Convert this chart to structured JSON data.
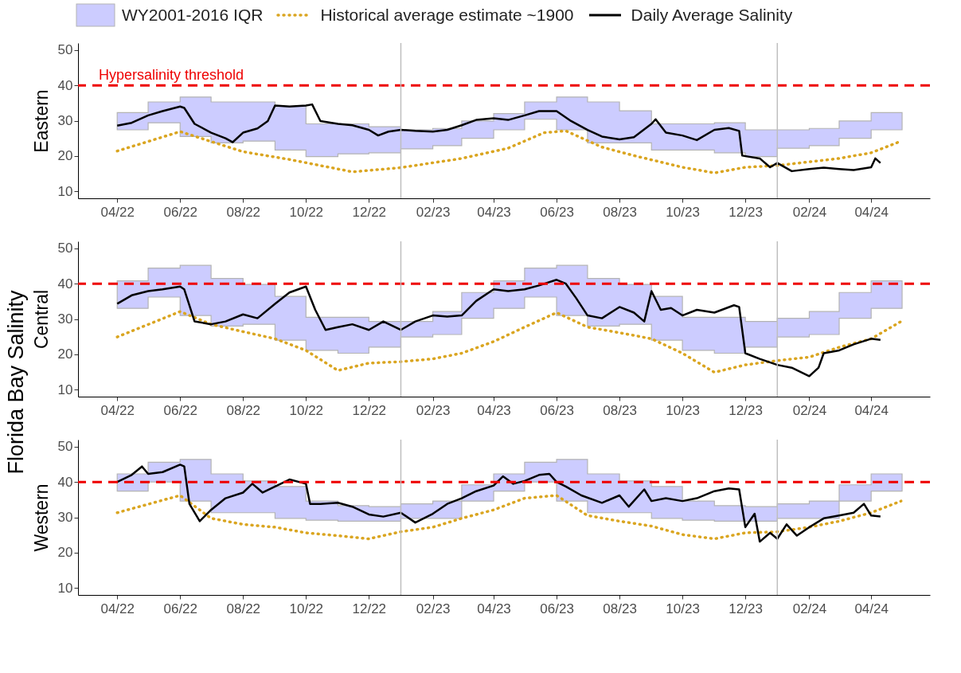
{
  "chart_data": [
    {
      "type": "line",
      "ylabel": "Eastern",
      "annotations": [
        "Florida Bay Salinity"
      ],
      "legend": "top",
      "grid": false,
      "xlim": [
        "2022-02-22",
        "2024-05-28"
      ],
      "ylim": [
        8,
        52
      ],
      "yticks": [
        10,
        20,
        30,
        40,
        50
      ],
      "xticks": [
        {
          "value": "2022-04-01",
          "label": "04/22"
        },
        {
          "value": "2022-06-01",
          "label": "06/22"
        },
        {
          "value": "2022-08-01",
          "label": "08/22"
        },
        {
          "value": "2022-10-01",
          "label": "10/22"
        },
        {
          "value": "2022-12-01",
          "label": "12/22"
        },
        {
          "value": "2023-02-01",
          "label": "02/23"
        },
        {
          "value": "2023-04-01",
          "label": "04/23"
        },
        {
          "value": "2023-06-01",
          "label": "06/23"
        },
        {
          "value": "2023-08-01",
          "label": "08/23"
        },
        {
          "value": "2023-10-01",
          "label": "10/23"
        },
        {
          "value": "2023-12-01",
          "label": "12/23"
        },
        {
          "value": "2024-02-01",
          "label": "02/24"
        },
        {
          "value": "2024-04-01",
          "label": "04/24"
        }
      ],
      "ref_lines": [
        {
          "axis": "y",
          "value": 40,
          "label": "Hypersalinity threshold",
          "color": "#ee0000",
          "line_style": "dashed"
        },
        {
          "axis": "x",
          "value": "2023-01-01",
          "color": "#bebebe"
        },
        {
          "axis": "x",
          "value": "2024-01-01",
          "color": "#bebebe"
        }
      ],
      "series": [
        {
          "name": "WY2001-2016 IQR",
          "type": "area",
          "color": "#ccccff",
          "values": [
            null,
            null,
            null,
            null,
            null,
            null,
            null,
            null,
            null,
            null,
            null,
            null,
            null,
            null,
            null,
            null,
            null,
            null,
            null,
            null,
            null,
            null,
            null,
            null,
            null,
            null
          ],
          "x": [
            "2022-04",
            "2022-05",
            "2022-06",
            "2022-07",
            "2022-08",
            "2022-09",
            "2022-10",
            "2022-11",
            "2022-12",
            "2023-01",
            "2023-02",
            "2023-03",
            "2023-04",
            "2023-05",
            "2023-06",
            "2023-07",
            "2023-08",
            "2023-09",
            "2023-10",
            "2023-11",
            "2023-12",
            "2024-01",
            "2024-02",
            "2024-03",
            "2024-04",
            "2024-05"
          ],
          "upper": [
            32.3,
            35.3,
            36.7,
            35.3,
            35.3,
            34.1,
            29.1,
            29.1,
            28.3,
            27.4,
            27.8,
            29.9,
            32.0,
            35.3,
            36.7,
            35.3,
            32.8,
            29.1,
            29.1,
            29.4,
            27.4,
            27.4,
            27.8,
            29.9,
            32.3,
            32.3
          ],
          "lower": [
            27.4,
            29.4,
            25.5,
            23.7,
            24.2,
            21.7,
            19.8,
            20.6,
            20.9,
            22.0,
            22.9,
            25.0,
            27.4,
            30.4,
            27.4,
            23.7,
            23.7,
            21.7,
            21.7,
            20.9,
            19.8,
            22.2,
            22.9,
            25.0,
            27.4,
            27.4
          ]
        },
        {
          "name": "Historical average estimate ~1900",
          "type": "line",
          "line_style": "dotted",
          "color": "#daa520",
          "x": [
            "2022-04-01",
            "2022-06-01",
            "2022-08-01",
            "2022-09-15",
            "2022-11-15",
            "2023-01-01",
            "2023-03-01",
            "2023-04-15",
            "2023-05-20",
            "2023-06-10",
            "2023-07-15",
            "2023-08-15",
            "2023-10-01",
            "2023-11-01",
            "2023-12-01",
            "2024-01-01",
            "2024-03-01",
            "2024-04-01",
            "2024-04-30"
          ],
          "values": [
            21.4,
            26.9,
            21.2,
            19.0,
            15.5,
            16.7,
            19.3,
            22.2,
            26.6,
            27.1,
            22.5,
            20.1,
            16.8,
            15.2,
            16.8,
            17.3,
            19.3,
            20.9,
            24.2
          ]
        },
        {
          "name": "Daily Average Salinity",
          "type": "line",
          "line_style": "solid",
          "color": "#000000",
          "x": [
            "2022-04-01",
            "2022-04-15",
            "2022-05-01",
            "2022-05-15",
            "2022-06-01",
            "2022-06-05",
            "2022-06-15",
            "2022-07-01",
            "2022-07-15",
            "2022-07-22",
            "2022-08-01",
            "2022-08-15",
            "2022-08-25",
            "2022-09-01",
            "2022-09-15",
            "2022-10-01",
            "2022-10-07",
            "2022-10-15",
            "2022-11-01",
            "2022-11-15",
            "2022-12-01",
            "2022-12-10",
            "2022-12-20",
            "2023-01-01",
            "2023-01-15",
            "2023-02-01",
            "2023-02-15",
            "2023-03-01",
            "2023-03-15",
            "2023-04-01",
            "2023-04-15",
            "2023-05-01",
            "2023-05-15",
            "2023-06-01",
            "2023-06-15",
            "2023-07-01",
            "2023-07-15",
            "2023-08-01",
            "2023-08-15",
            "2023-09-01",
            "2023-09-05",
            "2023-09-15",
            "2023-10-01",
            "2023-10-15",
            "2023-11-01",
            "2023-11-15",
            "2023-11-25",
            "2023-11-28",
            "2023-12-15",
            "2023-12-25",
            "2024-01-01",
            "2024-01-15",
            "2024-02-01",
            "2024-02-15",
            "2024-03-01",
            "2024-03-15",
            "2024-04-01",
            "2024-04-05",
            "2024-04-10"
          ],
          "values": [
            28.6,
            29.4,
            31.5,
            32.7,
            34.0,
            33.6,
            29.1,
            26.6,
            25.0,
            23.9,
            26.6,
            27.8,
            29.9,
            34.3,
            34.0,
            34.3,
            34.6,
            29.9,
            29.1,
            28.7,
            27.4,
            25.8,
            26.9,
            27.4,
            27.1,
            26.9,
            27.4,
            28.7,
            30.2,
            30.7,
            30.2,
            31.5,
            32.7,
            32.7,
            29.9,
            27.4,
            25.5,
            24.7,
            25.3,
            29.1,
            30.4,
            26.6,
            25.8,
            24.5,
            27.4,
            27.9,
            27.1,
            20.1,
            19.3,
            16.8,
            18.0,
            15.7,
            16.3,
            16.7,
            16.3,
            16.0,
            16.8,
            19.3,
            18.0
          ]
        }
      ]
    },
    {
      "type": "line",
      "ylabel": "Central",
      "grid": false,
      "xlim": [
        "2022-02-22",
        "2024-05-28"
      ],
      "ylim": [
        8,
        52
      ],
      "yticks": [
        10,
        20,
        30,
        40,
        50
      ],
      "xticks": [
        {
          "value": "2022-04-01",
          "label": "04/22"
        },
        {
          "value": "2022-06-01",
          "label": "06/22"
        },
        {
          "value": "2022-08-01",
          "label": "08/22"
        },
        {
          "value": "2022-10-01",
          "label": "10/22"
        },
        {
          "value": "2022-12-01",
          "label": "12/22"
        },
        {
          "value": "2023-02-01",
          "label": "02/23"
        },
        {
          "value": "2023-04-01",
          "label": "04/23"
        },
        {
          "value": "2023-06-01",
          "label": "06/23"
        },
        {
          "value": "2023-08-01",
          "label": "08/23"
        },
        {
          "value": "2023-10-01",
          "label": "10/23"
        },
        {
          "value": "2023-12-01",
          "label": "12/23"
        },
        {
          "value": "2024-02-01",
          "label": "02/24"
        },
        {
          "value": "2024-04-01",
          "label": "04/24"
        }
      ],
      "ref_lines": [
        {
          "axis": "y",
          "value": 40,
          "color": "#ee0000",
          "line_style": "dashed"
        },
        {
          "axis": "x",
          "value": "2023-01-01",
          "color": "#bebebe"
        },
        {
          "axis": "x",
          "value": "2024-01-01",
          "color": "#bebebe"
        }
      ],
      "series": [
        {
          "type": "area",
          "color": "#ccccff",
          "values": [
            null,
            null,
            null,
            null,
            null,
            null,
            null,
            null,
            null,
            null,
            null,
            null,
            null,
            null,
            null,
            null,
            null,
            null,
            null,
            null,
            null,
            null,
            null,
            null,
            null,
            null
          ],
          "x": [
            "2022-04",
            "2022-05",
            "2022-06",
            "2022-07",
            "2022-08",
            "2022-09",
            "2022-10",
            "2022-11",
            "2022-12",
            "2023-01",
            "2023-02",
            "2023-03",
            "2023-04",
            "2023-05",
            "2023-06",
            "2023-07",
            "2023-08",
            "2023-09",
            "2023-10",
            "2023-11",
            "2023-12",
            "2024-01",
            "2024-02",
            "2024-03",
            "2024-04",
            "2024-05"
          ],
          "upper": [
            40.8,
            44.4,
            45.2,
            41.5,
            39.8,
            36.4,
            30.5,
            30.5,
            29.3,
            29.3,
            32.1,
            37.5,
            40.8,
            44.4,
            45.2,
            41.5,
            39.8,
            36.4,
            30.5,
            30.5,
            29.3,
            30.2,
            32.1,
            37.5,
            40.8,
            40.8
          ],
          "lower": [
            33.0,
            36.2,
            31.0,
            28.0,
            28.5,
            24.0,
            21.1,
            20.3,
            22.0,
            24.9,
            25.6,
            30.2,
            33.0,
            36.2,
            31.0,
            28.0,
            28.5,
            24.0,
            21.1,
            20.3,
            22.0,
            24.9,
            25.6,
            30.2,
            33.0,
            33.0
          ]
        },
        {
          "type": "line",
          "line_style": "dotted",
          "color": "#daa520",
          "x": [
            "2022-04-01",
            "2022-06-01",
            "2022-07-01",
            "2022-08-01",
            "2022-09-01",
            "2022-10-01",
            "2022-11-01",
            "2022-12-01",
            "2023-01-01",
            "2023-02-01",
            "2023-03-01",
            "2023-04-01",
            "2023-05-01",
            "2023-06-01",
            "2023-07-01",
            "2023-08-01",
            "2023-09-01",
            "2023-10-01",
            "2023-11-01",
            "2023-12-01",
            "2024-01-01",
            "2024-02-01",
            "2024-03-01",
            "2024-04-01",
            "2024-04-30"
          ],
          "values": [
            24.9,
            32.1,
            28.5,
            26.4,
            24.4,
            21.1,
            15.4,
            17.5,
            17.9,
            18.7,
            20.3,
            23.6,
            27.7,
            31.8,
            27.7,
            26.1,
            24.4,
            20.3,
            14.9,
            17.0,
            18.2,
            19.2,
            22.0,
            24.4,
            29.3
          ]
        },
        {
          "type": "line",
          "line_style": "solid",
          "color": "#000000",
          "x": [
            "2022-04-01",
            "2022-04-15",
            "2022-05-01",
            "2022-05-15",
            "2022-06-01",
            "2022-06-05",
            "2022-06-15",
            "2022-07-01",
            "2022-07-15",
            "2022-08-01",
            "2022-08-15",
            "2022-09-01",
            "2022-09-15",
            "2022-10-01",
            "2022-10-10",
            "2022-10-20",
            "2022-11-01",
            "2022-11-15",
            "2022-12-01",
            "2022-12-15",
            "2023-01-01",
            "2023-01-15",
            "2023-02-01",
            "2023-02-15",
            "2023-03-01",
            "2023-03-15",
            "2023-04-01",
            "2023-04-15",
            "2023-05-01",
            "2023-05-15",
            "2023-06-01",
            "2023-06-10",
            "2023-06-20",
            "2023-07-01",
            "2023-07-15",
            "2023-08-01",
            "2023-08-15",
            "2023-08-25",
            "2023-09-01",
            "2023-09-10",
            "2023-09-20",
            "2023-10-01",
            "2023-10-15",
            "2023-11-01",
            "2023-11-20",
            "2023-11-25",
            "2023-12-01",
            "2023-12-15",
            "2024-01-01",
            "2024-01-15",
            "2024-02-01",
            "2024-02-10",
            "2024-02-15",
            "2024-03-01",
            "2024-03-15",
            "2024-04-01",
            "2024-04-10"
          ],
          "values": [
            34.3,
            36.7,
            37.9,
            38.4,
            39.2,
            38.4,
            29.3,
            28.5,
            29.3,
            31.3,
            30.2,
            34.3,
            37.5,
            39.2,
            32.6,
            26.9,
            27.7,
            28.5,
            26.9,
            29.3,
            26.9,
            29.3,
            31.0,
            30.7,
            31.0,
            35.1,
            38.4,
            37.9,
            38.4,
            39.5,
            41.1,
            40.0,
            35.9,
            31.0,
            30.2,
            33.4,
            31.8,
            29.3,
            37.9,
            32.6,
            33.1,
            31.0,
            32.6,
            31.8,
            33.9,
            33.4,
            20.3,
            18.7,
            17.0,
            16.2,
            13.8,
            16.2,
            20.3,
            21.1,
            22.8,
            24.4,
            24.1
          ]
        }
      ]
    },
    {
      "type": "line",
      "ylabel": "Western",
      "grid": false,
      "xlim": [
        "2022-02-22",
        "2024-05-28"
      ],
      "ylim": [
        8,
        52
      ],
      "yticks": [
        10,
        20,
        30,
        40,
        50
      ],
      "xticks": [
        {
          "value": "2022-04-01",
          "label": "04/22"
        },
        {
          "value": "2022-06-01",
          "label": "06/22"
        },
        {
          "value": "2022-08-01",
          "label": "08/22"
        },
        {
          "value": "2022-10-01",
          "label": "10/22"
        },
        {
          "value": "2022-12-01",
          "label": "12/22"
        },
        {
          "value": "2023-02-01",
          "label": "02/23"
        },
        {
          "value": "2023-04-01",
          "label": "04/23"
        },
        {
          "value": "2023-06-01",
          "label": "06/23"
        },
        {
          "value": "2023-08-01",
          "label": "08/23"
        },
        {
          "value": "2023-10-01",
          "label": "10/23"
        },
        {
          "value": "2023-12-01",
          "label": "12/23"
        },
        {
          "value": "2024-02-01",
          "label": "02/24"
        },
        {
          "value": "2024-04-01",
          "label": "04/24"
        }
      ],
      "ref_lines": [
        {
          "axis": "y",
          "value": 40,
          "color": "#ee0000",
          "line_style": "dashed"
        },
        {
          "axis": "x",
          "value": "2023-01-01",
          "color": "#bebebe"
        },
        {
          "axis": "x",
          "value": "2024-01-01",
          "color": "#bebebe"
        }
      ],
      "series": [
        {
          "type": "area",
          "color": "#ccccff",
          "values": [
            null,
            null,
            null,
            null,
            null,
            null,
            null,
            null,
            null,
            null,
            null,
            null,
            null,
            null,
            null,
            null,
            null,
            null,
            null,
            null,
            null,
            null,
            null,
            null,
            null,
            null
          ],
          "x": [
            "2022-04",
            "2022-05",
            "2022-06",
            "2022-07",
            "2022-08",
            "2022-09",
            "2022-10",
            "2022-11",
            "2022-12",
            "2023-01",
            "2023-02",
            "2023-03",
            "2023-04",
            "2023-05",
            "2023-06",
            "2023-07",
            "2023-08",
            "2023-09",
            "2023-10",
            "2023-11",
            "2023-12",
            "2024-01",
            "2024-02",
            "2024-03",
            "2024-04",
            "2024-05"
          ],
          "upper": [
            42.3,
            45.6,
            46.4,
            42.3,
            40.3,
            38.7,
            34.6,
            33.3,
            33.0,
            33.8,
            34.6,
            39.2,
            42.3,
            45.6,
            46.4,
            42.3,
            40.3,
            38.7,
            34.6,
            33.3,
            33.0,
            33.8,
            34.6,
            39.2,
            42.3,
            42.3
          ],
          "lower": [
            37.4,
            40.0,
            34.6,
            31.3,
            31.3,
            29.7,
            29.2,
            28.9,
            28.9,
            29.7,
            29.7,
            34.6,
            37.4,
            40.0,
            34.6,
            31.3,
            31.3,
            29.7,
            29.2,
            28.9,
            28.9,
            29.7,
            29.7,
            34.6,
            37.4,
            37.4
          ]
        },
        {
          "type": "line",
          "line_style": "dotted",
          "color": "#daa520",
          "x": [
            "2022-04-01",
            "2022-06-01",
            "2022-07-01",
            "2022-08-01",
            "2022-09-01",
            "2022-10-01",
            "2022-11-01",
            "2022-12-01",
            "2023-01-01",
            "2023-02-01",
            "2023-03-01",
            "2023-04-01",
            "2023-05-01",
            "2023-06-01",
            "2023-07-01",
            "2023-08-01",
            "2023-09-01",
            "2023-10-01",
            "2023-11-01",
            "2023-12-01",
            "2024-01-01",
            "2024-02-01",
            "2024-03-01",
            "2024-04-01",
            "2024-04-30"
          ],
          "values": [
            31.3,
            36.2,
            29.7,
            28.0,
            27.2,
            25.6,
            24.8,
            23.9,
            25.9,
            27.2,
            29.7,
            32.1,
            35.4,
            36.2,
            30.5,
            28.9,
            27.5,
            25.1,
            23.9,
            25.6,
            25.9,
            27.2,
            28.9,
            31.3,
            34.6
          ]
        },
        {
          "type": "line",
          "line_style": "solid",
          "color": "#000000",
          "x": [
            "2022-04-01",
            "2022-04-15",
            "2022-04-25",
            "2022-05-01",
            "2022-05-15",
            "2022-06-01",
            "2022-06-05",
            "2022-06-10",
            "2022-06-20",
            "2022-07-01",
            "2022-07-15",
            "2022-08-01",
            "2022-08-10",
            "2022-08-20",
            "2022-09-01",
            "2022-09-15",
            "2022-10-01",
            "2022-10-05",
            "2022-10-15",
            "2022-11-01",
            "2022-11-15",
            "2022-12-01",
            "2022-12-15",
            "2023-01-01",
            "2023-01-15",
            "2023-02-01",
            "2023-02-15",
            "2023-03-01",
            "2023-03-15",
            "2023-04-01",
            "2023-04-10",
            "2023-04-20",
            "2023-05-01",
            "2023-05-15",
            "2023-05-25",
            "2023-06-01",
            "2023-06-10",
            "2023-06-25",
            "2023-07-15",
            "2023-08-01",
            "2023-08-10",
            "2023-08-25",
            "2023-09-01",
            "2023-09-15",
            "2023-10-01",
            "2023-10-15",
            "2023-11-01",
            "2023-11-15",
            "2023-11-25",
            "2023-12-01",
            "2023-12-10",
            "2023-12-15",
            "2023-12-25",
            "2024-01-01",
            "2024-01-10",
            "2024-01-20",
            "2024-02-01",
            "2024-02-15",
            "2024-03-01",
            "2024-03-15",
            "2024-03-25",
            "2024-04-01",
            "2024-04-10"
          ],
          "values": [
            40.0,
            42.0,
            44.4,
            42.3,
            42.8,
            44.9,
            44.4,
            33.8,
            28.9,
            32.1,
            35.4,
            37.0,
            39.5,
            37.0,
            38.7,
            40.7,
            39.5,
            33.8,
            33.8,
            34.1,
            33.0,
            30.8,
            30.2,
            31.3,
            28.5,
            31.0,
            33.8,
            35.4,
            37.4,
            39.0,
            41.6,
            39.5,
            40.3,
            42.0,
            42.3,
            40.0,
            38.7,
            36.2,
            34.1,
            36.2,
            33.0,
            37.9,
            34.6,
            35.4,
            34.6,
            35.4,
            37.4,
            38.2,
            37.9,
            27.2,
            31.0,
            23.1,
            25.6,
            23.9,
            28.0,
            24.8,
            27.2,
            29.7,
            30.5,
            31.3,
            33.8,
            30.5,
            30.2
          ]
        }
      ]
    }
  ]
}
